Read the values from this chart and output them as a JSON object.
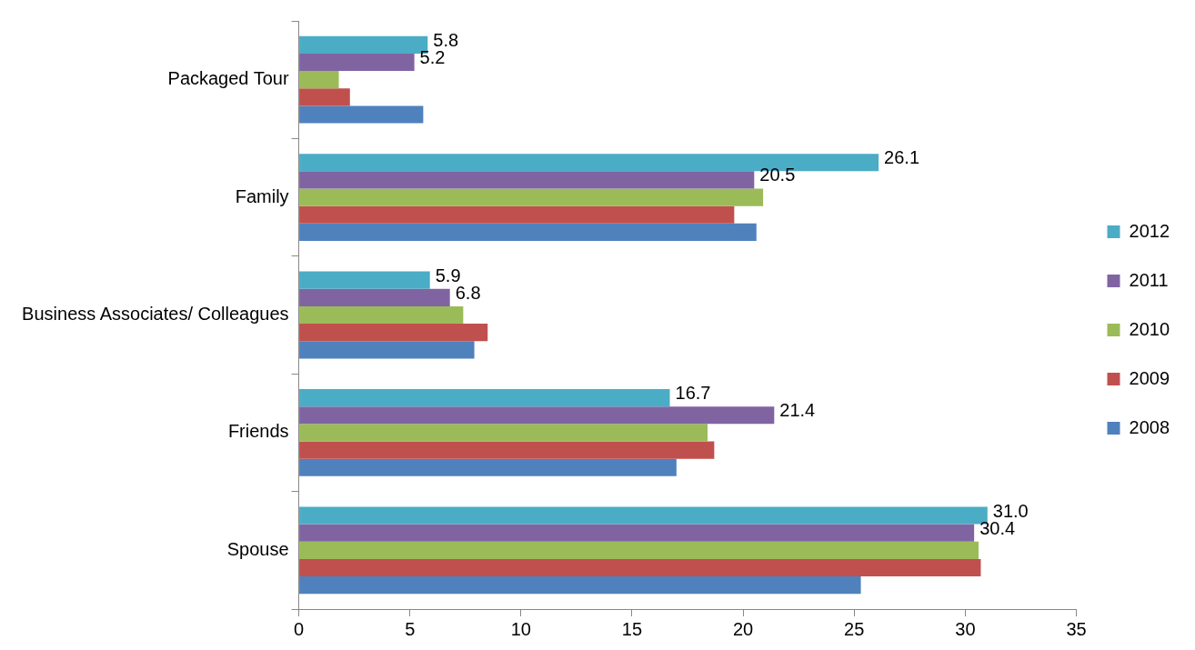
{
  "chart_data": {
    "type": "bar",
    "orientation": "horizontal",
    "categories": [
      "Packaged Tour",
      "Family",
      "Business Associates/ Colleagues",
      "Friends",
      "Spouse"
    ],
    "series": [
      {
        "name": "2012",
        "color": "#4bacc6",
        "values": [
          5.8,
          26.1,
          5.9,
          16.7,
          31.0
        ],
        "value_labels": [
          "5.8",
          "26.1",
          "5.9",
          "16.7",
          "31.0"
        ]
      },
      {
        "name": "2011",
        "color": "#8064a2",
        "values": [
          5.2,
          20.5,
          6.8,
          21.4,
          30.4
        ],
        "value_labels": [
          "5.2",
          "20.5",
          "6.8",
          "21.4",
          "30.4"
        ]
      },
      {
        "name": "2010",
        "color": "#9bbb59",
        "values": [
          1.8,
          20.9,
          7.4,
          18.4,
          30.6
        ]
      },
      {
        "name": "2009",
        "color": "#c0504d",
        "values": [
          2.3,
          19.6,
          8.5,
          18.7,
          30.7
        ]
      },
      {
        "name": "2008",
        "color": "#4f81bd",
        "values": [
          5.6,
          20.6,
          7.9,
          17.0,
          25.3
        ]
      }
    ],
    "xlim": [
      0,
      35
    ],
    "xticks": [
      0,
      5,
      10,
      15,
      20,
      25,
      30,
      35
    ],
    "grid": false,
    "legend": "right"
  }
}
